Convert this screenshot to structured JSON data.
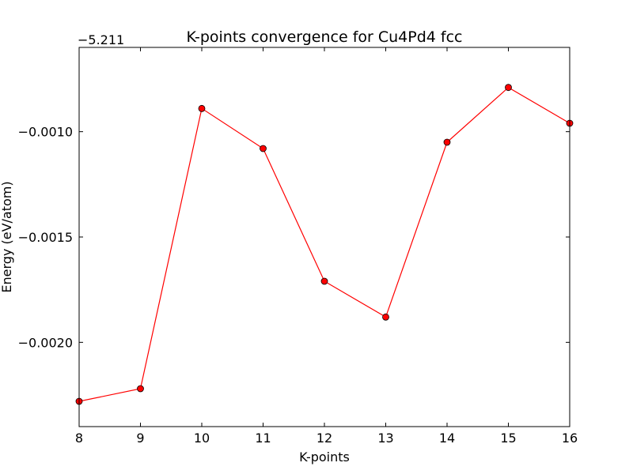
{
  "chart_data": {
    "type": "line",
    "title": "K-points convergence for Cu4Pd4 fcc",
    "xlabel": "K-points",
    "ylabel": "Energy (eV/atom)",
    "y_offset_label": "−5.211",
    "y_offset": -5.211,
    "x": [
      8,
      9,
      10,
      11,
      12,
      13,
      14,
      15,
      16
    ],
    "y": [
      -5.21328,
      -5.21322,
      -5.21189,
      -5.21208,
      -5.21271,
      -5.21288,
      -5.21205,
      -5.21179,
      -5.21196
    ],
    "xlim": [
      8,
      16
    ],
    "ylim": [
      -5.2134,
      -5.2116
    ],
    "xticks": [
      8,
      9,
      10,
      11,
      12,
      13,
      14,
      15,
      16
    ],
    "xtick_labels": [
      "8",
      "9",
      "10",
      "11",
      "12",
      "13",
      "14",
      "15",
      "16"
    ],
    "yticks": [
      -0.001,
      -0.0015,
      -0.002
    ],
    "ytick_labels": [
      "−0.0010",
      "−0.0015",
      "−0.0020"
    ],
    "line_color": "#ff0000",
    "marker_color": "#ff0000",
    "marker_edge_color": "#000000",
    "grid": false,
    "legend": "none"
  }
}
